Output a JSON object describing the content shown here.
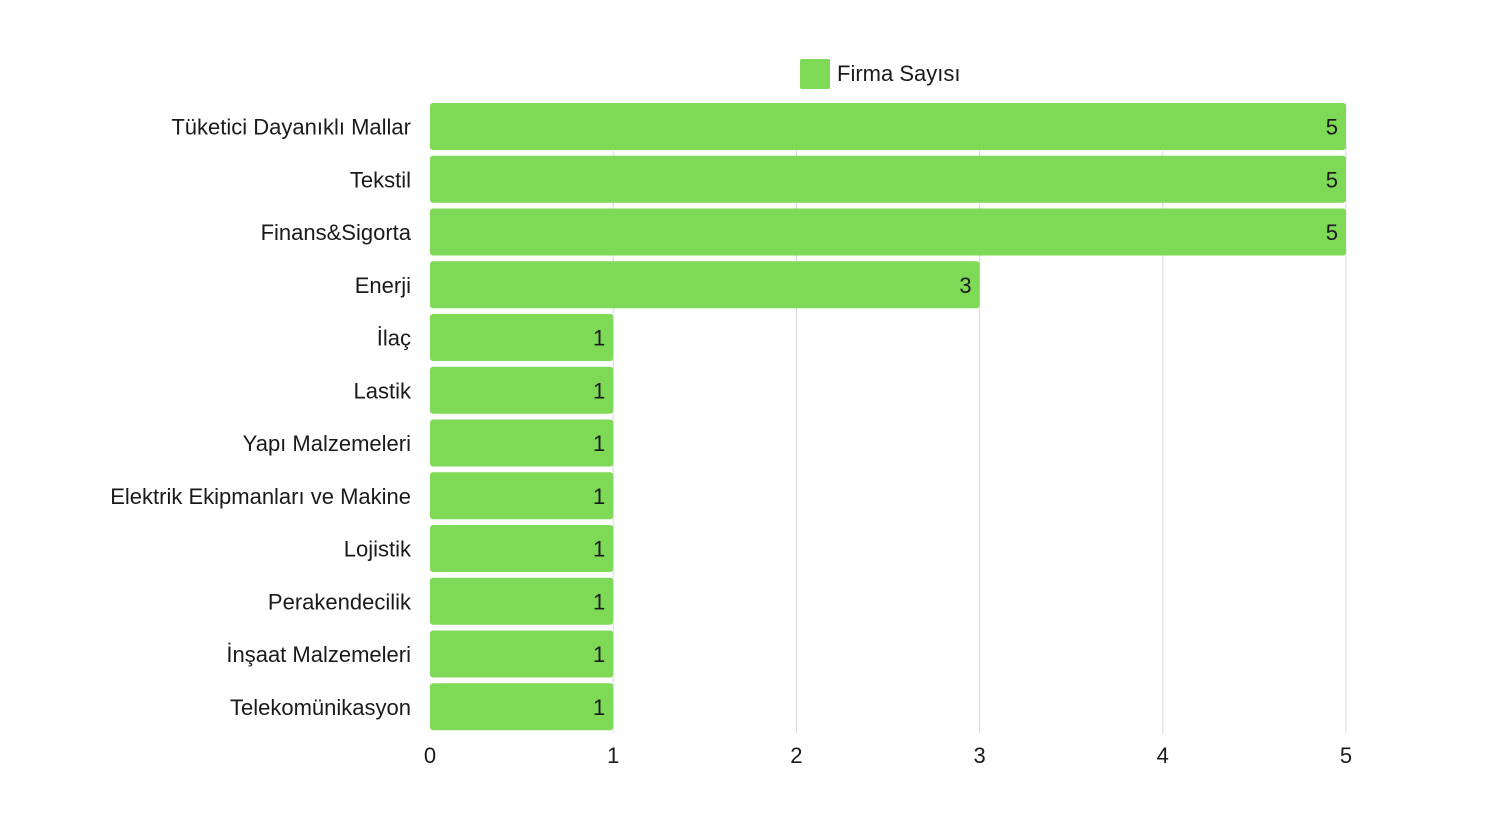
{
  "chart_data": {
    "type": "bar",
    "orientation": "horizontal",
    "categories": [
      "Tüketici Dayanıklı Mallar",
      "Tekstil",
      "Finans&Sigorta",
      "Enerji",
      "İlaç",
      "Lastik",
      "Yapı Malzemeleri",
      "Elektrik Ekipmanları ve Makine",
      "Lojistik",
      "Perakendecilik",
      "İnşaat Malzemeleri",
      "Telekomünikasyon"
    ],
    "series": [
      {
        "name": "Firma Sayısı",
        "values": [
          5,
          5,
          5,
          3,
          1,
          1,
          1,
          1,
          1,
          1,
          1,
          1
        ],
        "color": "#7ed957"
      }
    ],
    "xlim": [
      0,
      5
    ],
    "xticks": [
      0,
      1,
      2,
      3,
      4,
      5
    ],
    "grid": true,
    "legend_position": "top-center",
    "data_labels": true
  }
}
